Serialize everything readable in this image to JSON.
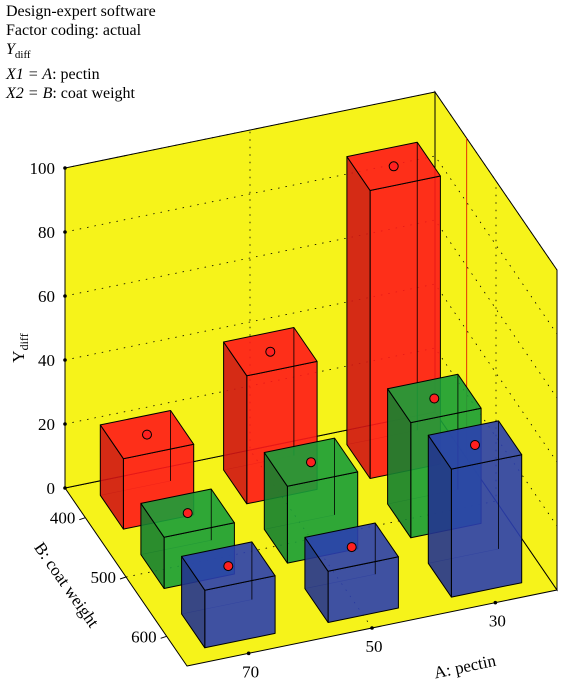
{
  "header": {
    "software": "Design-expert software",
    "coding": "Factor coding: actual",
    "response_main": "Y",
    "response_sub": "diff",
    "x1_prefix": "X1 = ",
    "x1_letter": "A",
    "x1_name": ": pectin",
    "x2_prefix": "X2 = ",
    "x2_letter": "B",
    "x2_name": ": coat weight"
  },
  "chart_data": {
    "type": "bar3d",
    "zlabel_main": "Y",
    "zlabel_sub": "diff",
    "xlabel": "A: pectin",
    "ylabel": "B: coat weight",
    "z_ticks": [
      "0",
      "20",
      "40",
      "60",
      "80",
      "100"
    ],
    "zlim": [
      0,
      100
    ],
    "a_ticks": [
      "70",
      "50",
      "30"
    ],
    "b_ticks": [
      "400",
      "500",
      "600"
    ],
    "grid": true,
    "bars": [
      {
        "a": 70,
        "b": 400,
        "value": 22,
        "color": "#ff1a1a"
      },
      {
        "a": 50,
        "b": 400,
        "value": 40,
        "color": "#ff1a1a"
      },
      {
        "a": 30,
        "b": 400,
        "value": 90,
        "color": "#ff1a1a"
      },
      {
        "a": 70,
        "b": 500,
        "value": 16,
        "color": "#1a9e3a"
      },
      {
        "a": 50,
        "b": 500,
        "value": 24,
        "color": "#1a9e3a"
      },
      {
        "a": 30,
        "b": 500,
        "value": 36,
        "color": "#1a9e3a"
      },
      {
        "a": 70,
        "b": 600,
        "value": 18,
        "color": "#2b3fb0"
      },
      {
        "a": 50,
        "b": 600,
        "value": 16,
        "color": "#2b3fb0"
      },
      {
        "a": 30,
        "b": 600,
        "value": 40,
        "color": "#2b3fb0"
      }
    ],
    "colors": {
      "floor": "#f6f31a",
      "wall": "#f6f31a",
      "marker": "#ff2020"
    }
  }
}
